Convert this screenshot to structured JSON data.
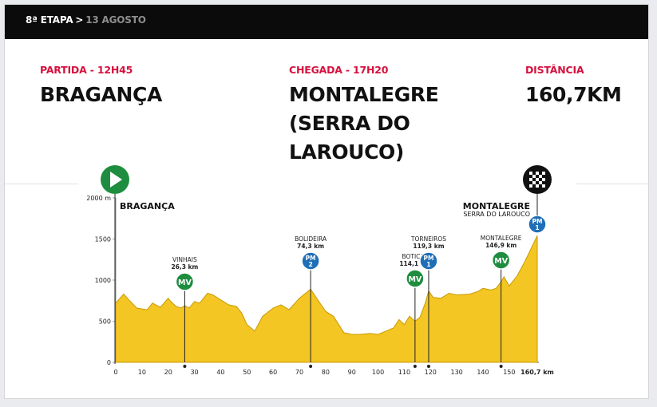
{
  "header": {
    "stage": "8ª ETAPA",
    "separator": ">",
    "date": "13 AGOSTO"
  },
  "info": {
    "start_label": "PARTIDA - 12H45",
    "start_value": "BRAGANÇA",
    "finish_label": "CHEGADA - 17H20",
    "finish_value_lines": [
      "MONTALEGRE",
      "(SERRA DO",
      "LAROUCO)"
    ],
    "distance_label": "DISTÂNCIA",
    "distance_value": "160,7KM"
  },
  "profile": {
    "start_town": "BRAGANÇA",
    "finish_town": "MONTALEGRE",
    "finish_subtitle": "SERRA DO LAROUCO",
    "start_icon": "play-icon",
    "finish_icon": "checkered-flag-icon",
    "colors": {
      "fill": "#f3c623",
      "stroke": "#c99a00",
      "mv_badge": "#1e8d3f",
      "pm_badge": "#1f6fb8",
      "accent": "#d6113f"
    }
  },
  "chart_data": {
    "type": "area",
    "title": "",
    "xlabel": "",
    "ylabel": "",
    "x_unit": "km",
    "y_unit": "m",
    "xlim": [
      0,
      160.7
    ],
    "ylim": [
      0,
      2000
    ],
    "x_ticks": [
      "0",
      "10",
      "20",
      "30",
      "40",
      "50",
      "60",
      "70",
      "80",
      "90",
      "100",
      "110",
      "120",
      "130",
      "140",
      "150",
      "160,7 km"
    ],
    "y_ticks": [
      "0",
      "500",
      "1000",
      "1500",
      "2000 m"
    ],
    "series": [
      {
        "x": [
          0,
          3,
          5,
          8,
          12,
          14,
          17,
          20,
          21,
          23,
          25,
          26.3,
          28,
          30,
          32,
          35,
          37,
          40,
          43,
          46,
          48,
          50,
          53,
          56,
          60,
          63,
          66,
          70,
          74.3,
          77,
          80,
          83,
          87,
          90,
          93,
          97,
          100,
          103,
          106,
          108,
          110,
          112,
          114.1,
          116,
          118,
          119.3,
          121,
          124,
          127,
          130,
          135,
          138,
          140,
          143,
          145,
          146.9,
          148,
          150,
          153,
          156,
          160.7
        ],
        "y": [
          720,
          830,
          760,
          660,
          640,
          720,
          670,
          780,
          740,
          680,
          660,
          690,
          660,
          740,
          720,
          840,
          820,
          760,
          700,
          680,
          600,
          460,
          380,
          560,
          660,
          700,
          640,
          780,
          890,
          760,
          620,
          560,
          360,
          340,
          340,
          350,
          340,
          380,
          420,
          520,
          460,
          560,
          500,
          550,
          720,
          870,
          790,
          780,
          840,
          820,
          830,
          860,
          900,
          880,
          900,
          980,
          1040,
          930,
          1050,
          1230,
          1540
        ]
      }
    ],
    "markers": [
      {
        "name": "VINHAIS",
        "km": 26.3,
        "dist": "26,3 km",
        "type": "MV"
      },
      {
        "name": "BOLIDEIRA",
        "km": 74.3,
        "dist": "74,3 km",
        "type": "PM",
        "cat": "2"
      },
      {
        "name": "BOTICAS",
        "km": 114.1,
        "dist": "114,1 km",
        "type": "MV"
      },
      {
        "name": "TORNEIROS",
        "km": 119.3,
        "dist": "119,3 km",
        "type": "PM",
        "cat": "1"
      },
      {
        "name": "MONTALEGRE",
        "km": 146.9,
        "dist": "146,9 km",
        "type": "MV"
      },
      {
        "name": "",
        "km": 160.7,
        "dist": "",
        "type": "PM",
        "cat": "1"
      }
    ],
    "grid": false,
    "legend": "none"
  }
}
